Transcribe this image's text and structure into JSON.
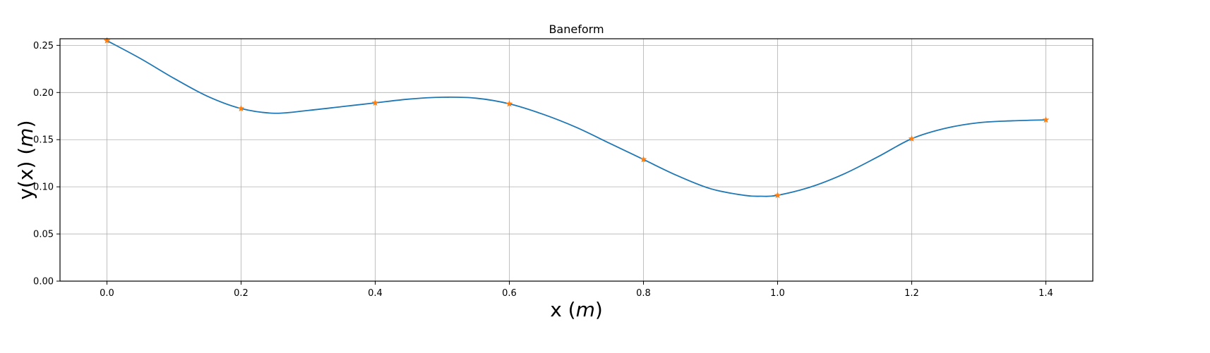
{
  "chart_data": {
    "type": "line",
    "title": "Baneform",
    "xlabel": {
      "prefix": "x (",
      "unit": "m",
      "suffix": ")"
    },
    "ylabel": {
      "prefix": "y(x) (",
      "unit": "m",
      "suffix": ")"
    },
    "xlim": [
      -0.07,
      1.47
    ],
    "ylim": [
      0.0,
      0.257
    ],
    "xticks": [
      0.0,
      0.2,
      0.4,
      0.6,
      0.8,
      1.0,
      1.2,
      1.4
    ],
    "xtick_labels": [
      "0.0",
      "0.2",
      "0.4",
      "0.6",
      "0.8",
      "1.0",
      "1.2",
      "1.4"
    ],
    "yticks": [
      0.0,
      0.05,
      0.1,
      0.15,
      0.2,
      0.25
    ],
    "ytick_labels": [
      "0.00",
      "0.05",
      "0.10",
      "0.15",
      "0.20",
      "0.25"
    ],
    "grid": true,
    "series": [
      {
        "kind": "curve",
        "color": "#1f77b4",
        "x": [
          0.0,
          0.05,
          0.1,
          0.15,
          0.2,
          0.25,
          0.3,
          0.35,
          0.4,
          0.45,
          0.5,
          0.55,
          0.6,
          0.65,
          0.7,
          0.75,
          0.8,
          0.85,
          0.9,
          0.95,
          0.975,
          1.0,
          1.05,
          1.1,
          1.15,
          1.2,
          1.25,
          1.3,
          1.35,
          1.4
        ],
        "y": [
          0.255,
          0.236,
          0.215,
          0.196,
          0.183,
          0.178,
          0.181,
          0.185,
          0.189,
          0.193,
          0.195,
          0.194,
          0.188,
          0.177,
          0.163,
          0.146,
          0.129,
          0.112,
          0.098,
          0.091,
          0.09,
          0.091,
          0.1,
          0.114,
          0.132,
          0.151,
          0.162,
          0.168,
          0.17,
          0.171
        ]
      },
      {
        "kind": "markers",
        "marker": "star",
        "color": "#ff7f0e",
        "x": [
          0.0,
          0.2,
          0.4,
          0.6,
          0.8,
          1.0,
          1.2,
          1.4
        ],
        "y": [
          0.255,
          0.183,
          0.189,
          0.188,
          0.129,
          0.091,
          0.151,
          0.171
        ]
      }
    ]
  }
}
